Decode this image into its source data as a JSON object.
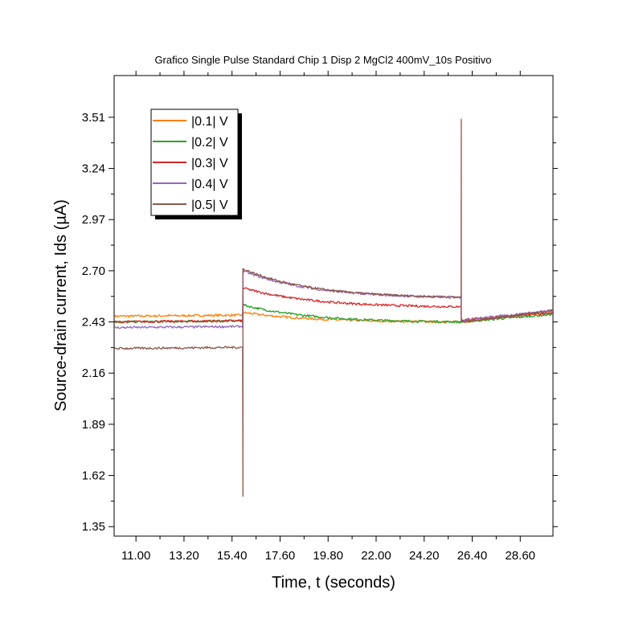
{
  "chart_data": {
    "type": "line",
    "title": "Grafico Single Pulse Standard Chip 1 Disp 2 MgCl2 400mV_10s Positivo",
    "xlabel": "Time, t (seconds)",
    "ylabel": "Source-drain current, Ids (µA)",
    "xlim": [
      10.0,
      30.1
    ],
    "ylim": [
      1.3,
      3.73
    ],
    "x_ticks": [
      "11.00",
      "13.20",
      "15.40",
      "17.60",
      "19.80",
      "22.00",
      "24.20",
      "26.40",
      "28.60"
    ],
    "y_ticks": [
      "1.35",
      "1.62",
      "1.89",
      "2.16",
      "2.43",
      "2.70",
      "2.97",
      "3.24",
      "3.51"
    ],
    "grid": false,
    "legend_position": "top-left",
    "pulse": {
      "on": 15.9,
      "off": 25.9
    },
    "series": [
      {
        "name": "|0.1| V",
        "color": "#ff7f0e",
        "y_before": 2.46,
        "y_on_peak": 2.48,
        "y_on_end": 2.43,
        "y_after_start": 2.43,
        "y_after_end": 2.48
      },
      {
        "name": "|0.2| V",
        "color": "#2ca02c",
        "y_before": 2.43,
        "y_on_peak": 2.52,
        "y_on_end": 2.43,
        "y_after_start": 2.43,
        "y_after_end": 2.47
      },
      {
        "name": "|0.3| V",
        "color": "#d62728",
        "y_before": 2.43,
        "y_on_peak": 2.61,
        "y_on_end": 2.51,
        "y_after_start": 2.44,
        "y_after_end": 2.48
      },
      {
        "name": "|0.4| V",
        "color": "#9467bd",
        "y_before": 2.4,
        "y_on_peak": 2.7,
        "y_on_end": 2.56,
        "y_after_start": 2.44,
        "y_after_end": 2.49
      },
      {
        "name": "|0.5| V",
        "color": "#8c564b",
        "y_before": 2.29,
        "y_on_peak": 2.71,
        "y_on_end": 2.56,
        "y_after_start": 2.43,
        "y_after_end": 2.49,
        "spike_down": 1.51,
        "spike_up": 3.5
      }
    ]
  }
}
